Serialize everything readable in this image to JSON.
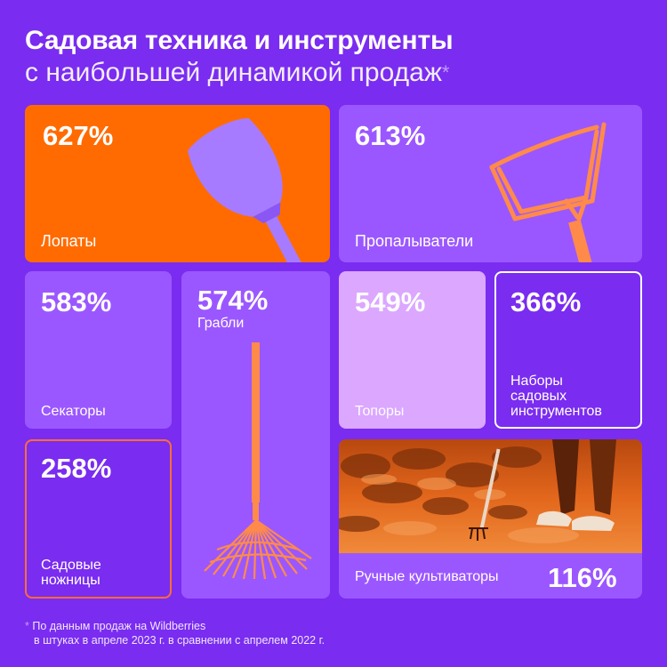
{
  "header": {
    "title": "Садовая техника и инструменты",
    "subtitle": "с наибольшей динамикой продаж",
    "asterisk": "*"
  },
  "cards": {
    "shovels": {
      "percent": "627%",
      "label": "Лопаты",
      "icon": "shovel-icon"
    },
    "weeders": {
      "percent": "613%",
      "label": "Пропалыватели",
      "icon": "weeder-icon"
    },
    "pruners": {
      "percent": "583%",
      "label": "Секаторы"
    },
    "rakes": {
      "percent": "574%",
      "label": "Грабли",
      "icon": "rake-icon"
    },
    "axes": {
      "percent": "549%",
      "label": "Топоры"
    },
    "sets": {
      "percent": "366%",
      "label_line1": "Наборы",
      "label_line2": "садовых",
      "label_line3": "инструментов"
    },
    "shears": {
      "percent": "258%",
      "label_line1": "Садовые",
      "label_line2": "ножницы"
    },
    "cultivators": {
      "percent": "116%",
      "label": "Ручные культиваторы",
      "image": "garden-soil-photo"
    }
  },
  "footnote": {
    "asterisk": "*",
    "line1": "По данным продаж на Wildberries",
    "line2": "в штуках в апреле 2023 г. в сравнении с апрелем 2022 г."
  },
  "colors": {
    "background": "#7a2cf0",
    "orange": "#ff6b00",
    "light_purple": "#9b57ff",
    "pink": "#dba7ff"
  }
}
